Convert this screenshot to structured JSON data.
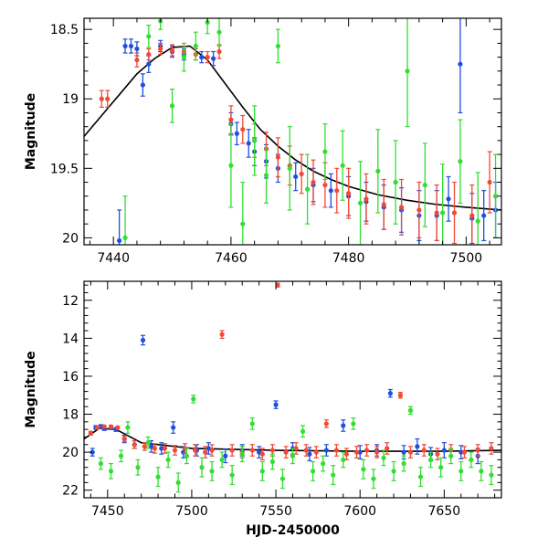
{
  "chart_data": [
    {
      "type": "scatter",
      "title": "",
      "xlabel": "",
      "ylabel": "Magnitude",
      "xlim": [
        7435,
        7506
      ],
      "ylim": [
        20.05,
        18.42
      ],
      "y_inverted": true,
      "xticks": [
        7440,
        7460,
        7480,
        7500
      ],
      "yticks": [
        18.5,
        19,
        19.5,
        20
      ],
      "xtick_labels": [
        "7440",
        "7460",
        "7480",
        "7500"
      ],
      "ytick_labels": [
        "18.5",
        "19",
        "19.5",
        "20"
      ],
      "grid": false,
      "legend": "none",
      "model_curve": {
        "color": "#000000",
        "x": [
          7435,
          7438,
          7441,
          7444,
          7447,
          7450,
          7453,
          7456,
          7459,
          7462,
          7465,
          7468,
          7471,
          7474,
          7477,
          7480,
          7485,
          7490,
          7495,
          7500,
          7506
        ],
        "y": [
          19.27,
          19.12,
          18.97,
          18.82,
          18.71,
          18.63,
          18.62,
          18.72,
          18.89,
          19.06,
          19.22,
          19.34,
          19.44,
          19.52,
          19.58,
          19.63,
          19.69,
          19.73,
          19.76,
          19.78,
          19.8
        ]
      },
      "series": [
        {
          "color": "#1f4fe0",
          "x": [
            7441,
            7442,
            7443,
            7444,
            7445,
            7446,
            7448,
            7450,
            7452,
            7455,
            7457,
            7460,
            7461,
            7463,
            7464,
            7466,
            7468,
            7471,
            7474,
            7477,
            7480,
            7483,
            7486,
            7489,
            7492,
            7495,
            7497,
            7499,
            7501,
            7503,
            7505
          ],
          "y": [
            20.02,
            18.62,
            18.62,
            18.64,
            18.9,
            18.75,
            18.62,
            18.66,
            18.68,
            18.7,
            18.71,
            19.18,
            19.25,
            19.32,
            19.38,
            19.45,
            19.5,
            19.56,
            19.62,
            19.66,
            19.7,
            19.74,
            19.78,
            19.8,
            19.84,
            19.84,
            19.72,
            18.75,
            19.86,
            19.84,
            19.8
          ],
          "err": [
            0.22,
            0.05,
            0.05,
            0.05,
            0.08,
            0.06,
            0.04,
            0.04,
            0.04,
            0.04,
            0.05,
            0.08,
            0.08,
            0.1,
            0.1,
            0.12,
            0.1,
            0.1,
            0.12,
            0.12,
            0.14,
            0.14,
            0.16,
            0.16,
            0.18,
            0.18,
            0.16,
            0.35,
            0.18,
            0.18,
            0.2
          ]
        },
        {
          "color": "#f04a35",
          "x": [
            7438,
            7439,
            7444,
            7446,
            7448,
            7450,
            7452,
            7454,
            7456,
            7458,
            7460,
            7462,
            7464,
            7466,
            7468,
            7470,
            7472,
            7474,
            7476,
            7478,
            7480,
            7483,
            7486,
            7489,
            7492,
            7495,
            7498,
            7501,
            7504
          ],
          "y": [
            19.0,
            19.0,
            18.72,
            18.68,
            18.64,
            18.65,
            18.66,
            18.68,
            18.7,
            18.66,
            19.15,
            19.22,
            19.3,
            19.36,
            19.42,
            19.48,
            19.54,
            19.6,
            19.62,
            19.66,
            19.68,
            19.72,
            19.76,
            19.78,
            19.8,
            19.82,
            19.82,
            19.84,
            19.6
          ],
          "err": [
            0.06,
            0.06,
            0.05,
            0.04,
            0.04,
            0.04,
            0.04,
            0.04,
            0.04,
            0.05,
            0.1,
            0.1,
            0.12,
            0.12,
            0.14,
            0.14,
            0.14,
            0.16,
            0.16,
            0.16,
            0.18,
            0.18,
            0.18,
            0.2,
            0.2,
            0.2,
            0.22,
            0.22,
            0.22
          ]
        },
        {
          "color": "#33dd33",
          "x": [
            7442,
            7446,
            7448,
            7450,
            7452,
            7454,
            7456,
            7458,
            7460,
            7462,
            7464,
            7466,
            7468,
            7470,
            7473,
            7476,
            7479,
            7482,
            7485,
            7488,
            7490,
            7493,
            7496,
            7499,
            7502,
            7505
          ],
          "y": [
            20.0,
            18.55,
            18.44,
            19.05,
            18.7,
            18.62,
            18.45,
            18.52,
            19.48,
            19.9,
            19.3,
            19.55,
            18.62,
            19.5,
            19.65,
            19.38,
            19.48,
            19.75,
            19.52,
            19.6,
            18.8,
            19.62,
            19.82,
            19.45,
            19.88,
            19.7
          ],
          "err": [
            0.3,
            0.08,
            0.06,
            0.12,
            0.1,
            0.1,
            0.08,
            0.1,
            0.3,
            0.3,
            0.25,
            0.2,
            0.12,
            0.3,
            0.25,
            0.2,
            0.25,
            0.3,
            0.3,
            0.3,
            0.4,
            0.3,
            0.35,
            0.3,
            0.35,
            0.3
          ]
        }
      ]
    },
    {
      "type": "scatter",
      "title": "",
      "xlabel": "HJD-2450000",
      "ylabel": "Magnitude",
      "xlim": [
        7436,
        7684
      ],
      "ylim": [
        22.4,
        11.0
      ],
      "y_inverted": true,
      "xticks": [
        7450,
        7500,
        7550,
        7600,
        7650
      ],
      "yticks": [
        12,
        14,
        16,
        18,
        20,
        22
      ],
      "xtick_labels": [
        "7450",
        "7500",
        "7550",
        "7600",
        "7650"
      ],
      "ytick_labels": [
        "12",
        "14",
        "16",
        "18",
        "20",
        "22"
      ],
      "grid": false,
      "legend": "none",
      "model_curve": {
        "color": "#000000",
        "x": [
          7436,
          7445,
          7455,
          7470,
          7500,
          7550,
          7600,
          7650,
          7684
        ],
        "y": [
          19.3,
          18.75,
          18.8,
          19.5,
          19.8,
          19.9,
          19.95,
          19.95,
          19.9
        ]
      },
      "series": [
        {
          "color": "#1f4fe0",
          "x": [
            7441,
            7443,
            7446,
            7448,
            7452,
            7455,
            7460,
            7466,
            7471,
            7476,
            7482,
            7489,
            7495,
            7503,
            7510,
            7520,
            7530,
            7540,
            7550,
            7560,
            7570,
            7580,
            7590,
            7600,
            7610,
            7618,
            7626,
            7634,
            7642,
            7650,
            7660,
            7670
          ],
          "y": [
            20.0,
            18.7,
            18.65,
            18.75,
            18.7,
            18.8,
            19.3,
            19.6,
            14.1,
            19.7,
            19.8,
            18.7,
            20.0,
            19.9,
            19.8,
            20.2,
            19.9,
            20.0,
            17.5,
            19.8,
            20.1,
            19.9,
            18.6,
            20.0,
            19.9,
            16.9,
            20.0,
            19.7,
            20.1,
            19.9,
            20.0,
            20.2
          ],
          "err": [
            0.2,
            0.1,
            0.1,
            0.1,
            0.1,
            0.1,
            0.2,
            0.2,
            0.25,
            0.3,
            0.3,
            0.3,
            0.3,
            0.3,
            0.3,
            0.35,
            0.3,
            0.3,
            0.2,
            0.3,
            0.35,
            0.3,
            0.3,
            0.35,
            0.3,
            0.2,
            0.35,
            0.4,
            0.35,
            0.4,
            0.35,
            0.4
          ]
        },
        {
          "color": "#f04a35",
          "x": [
            7440,
            7444,
            7448,
            7452,
            7456,
            7460,
            7466,
            7472,
            7478,
            7484,
            7490,
            7496,
            7502,
            7508,
            7512,
            7518,
            7524,
            7530,
            7536,
            7542,
            7548,
            7551,
            7556,
            7562,
            7568,
            7574,
            7580,
            7586,
            7592,
            7598,
            7604,
            7610,
            7616,
            7624,
            7630,
            7638,
            7646,
            7654,
            7662,
            7670,
            7678
          ],
          "y": [
            19.0,
            18.7,
            18.65,
            18.65,
            18.7,
            19.3,
            19.6,
            19.7,
            19.8,
            19.8,
            19.9,
            19.8,
            19.9,
            20.0,
            19.9,
            13.8,
            19.9,
            20.0,
            19.9,
            20.1,
            19.9,
            11.2,
            20.0,
            19.8,
            19.9,
            20.0,
            18.5,
            19.9,
            20.1,
            20.0,
            19.9,
            20.0,
            19.8,
            17.0,
            20.0,
            19.9,
            20.1,
            19.9,
            20.0,
            19.9,
            19.8
          ],
          "err": [
            0.1,
            0.05,
            0.05,
            0.05,
            0.05,
            0.15,
            0.2,
            0.2,
            0.25,
            0.25,
            0.25,
            0.25,
            0.3,
            0.3,
            0.3,
            0.2,
            0.3,
            0.3,
            0.3,
            0.3,
            0.3,
            0.1,
            0.3,
            0.3,
            0.3,
            0.3,
            0.2,
            0.3,
            0.3,
            0.3,
            0.3,
            0.3,
            0.3,
            0.15,
            0.3,
            0.3,
            0.3,
            0.3,
            0.3,
            0.3,
            0.3
          ]
        },
        {
          "color": "#33dd33",
          "x": [
            7446,
            7452,
            7458,
            7462,
            7468,
            7474,
            7480,
            7486,
            7492,
            7497,
            7501,
            7506,
            7512,
            7518,
            7524,
            7530,
            7536,
            7542,
            7548,
            7554,
            7560,
            7566,
            7572,
            7578,
            7584,
            7590,
            7596,
            7602,
            7608,
            7614,
            7620,
            7626,
            7630,
            7636,
            7642,
            7648,
            7654,
            7660,
            7666,
            7672,
            7678
          ],
          "y": [
            20.6,
            21.0,
            20.2,
            18.7,
            20.8,
            19.5,
            21.3,
            20.4,
            21.6,
            20.2,
            17.2,
            20.8,
            21.0,
            20.4,
            21.2,
            20.1,
            18.5,
            21.0,
            20.5,
            21.4,
            20.2,
            18.9,
            21.0,
            20.6,
            21.2,
            20.4,
            18.5,
            20.9,
            21.4,
            20.3,
            21.0,
            20.6,
            17.8,
            21.3,
            20.4,
            20.8,
            20.2,
            21.0,
            20.4,
            21.0,
            21.2
          ],
          "err": [
            0.3,
            0.4,
            0.3,
            0.3,
            0.4,
            0.3,
            0.5,
            0.4,
            0.5,
            0.4,
            0.2,
            0.5,
            0.5,
            0.4,
            0.5,
            0.4,
            0.3,
            0.5,
            0.4,
            0.5,
            0.4,
            0.3,
            0.5,
            0.4,
            0.5,
            0.4,
            0.3,
            0.5,
            0.5,
            0.4,
            0.5,
            0.4,
            0.2,
            0.5,
            0.4,
            0.5,
            0.4,
            0.5,
            0.4,
            0.5,
            0.5
          ]
        }
      ]
    }
  ]
}
